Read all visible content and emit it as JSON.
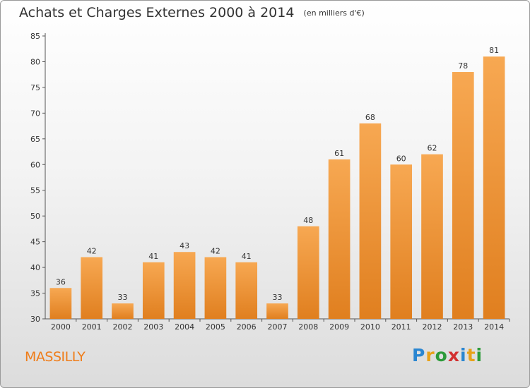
{
  "title": "Achats et Charges Externes 2000 à 2014",
  "unit": "(en milliers d'€)",
  "commune": "MASSILLY",
  "logo_letters": [
    "P",
    "r",
    "o",
    "x",
    "i",
    "t",
    "i"
  ],
  "logo_colors": [
    "#2a86d1",
    "#e8a21a",
    "#2d9b3a",
    "#d23030",
    "#2a86d1",
    "#e8a21a",
    "#2d9b3a"
  ],
  "colors": {
    "bar_light": "#f7a852",
    "bar_dark": "#e07f1f",
    "commune": "#ef7d1a"
  },
  "chart_data": {
    "type": "bar",
    "categories": [
      "2000",
      "2001",
      "2002",
      "2003",
      "2004",
      "2005",
      "2006",
      "2007",
      "2008",
      "2009",
      "2010",
      "2011",
      "2012",
      "2013",
      "2014"
    ],
    "values": [
      36,
      42,
      33,
      41,
      43,
      42,
      41,
      33,
      48,
      61,
      68,
      60,
      62,
      78,
      81
    ],
    "ylim": [
      30,
      85
    ],
    "yticks": [
      30,
      35,
      40,
      45,
      50,
      55,
      60,
      65,
      70,
      75,
      80,
      85
    ],
    "grid": false,
    "data_labels": true
  }
}
